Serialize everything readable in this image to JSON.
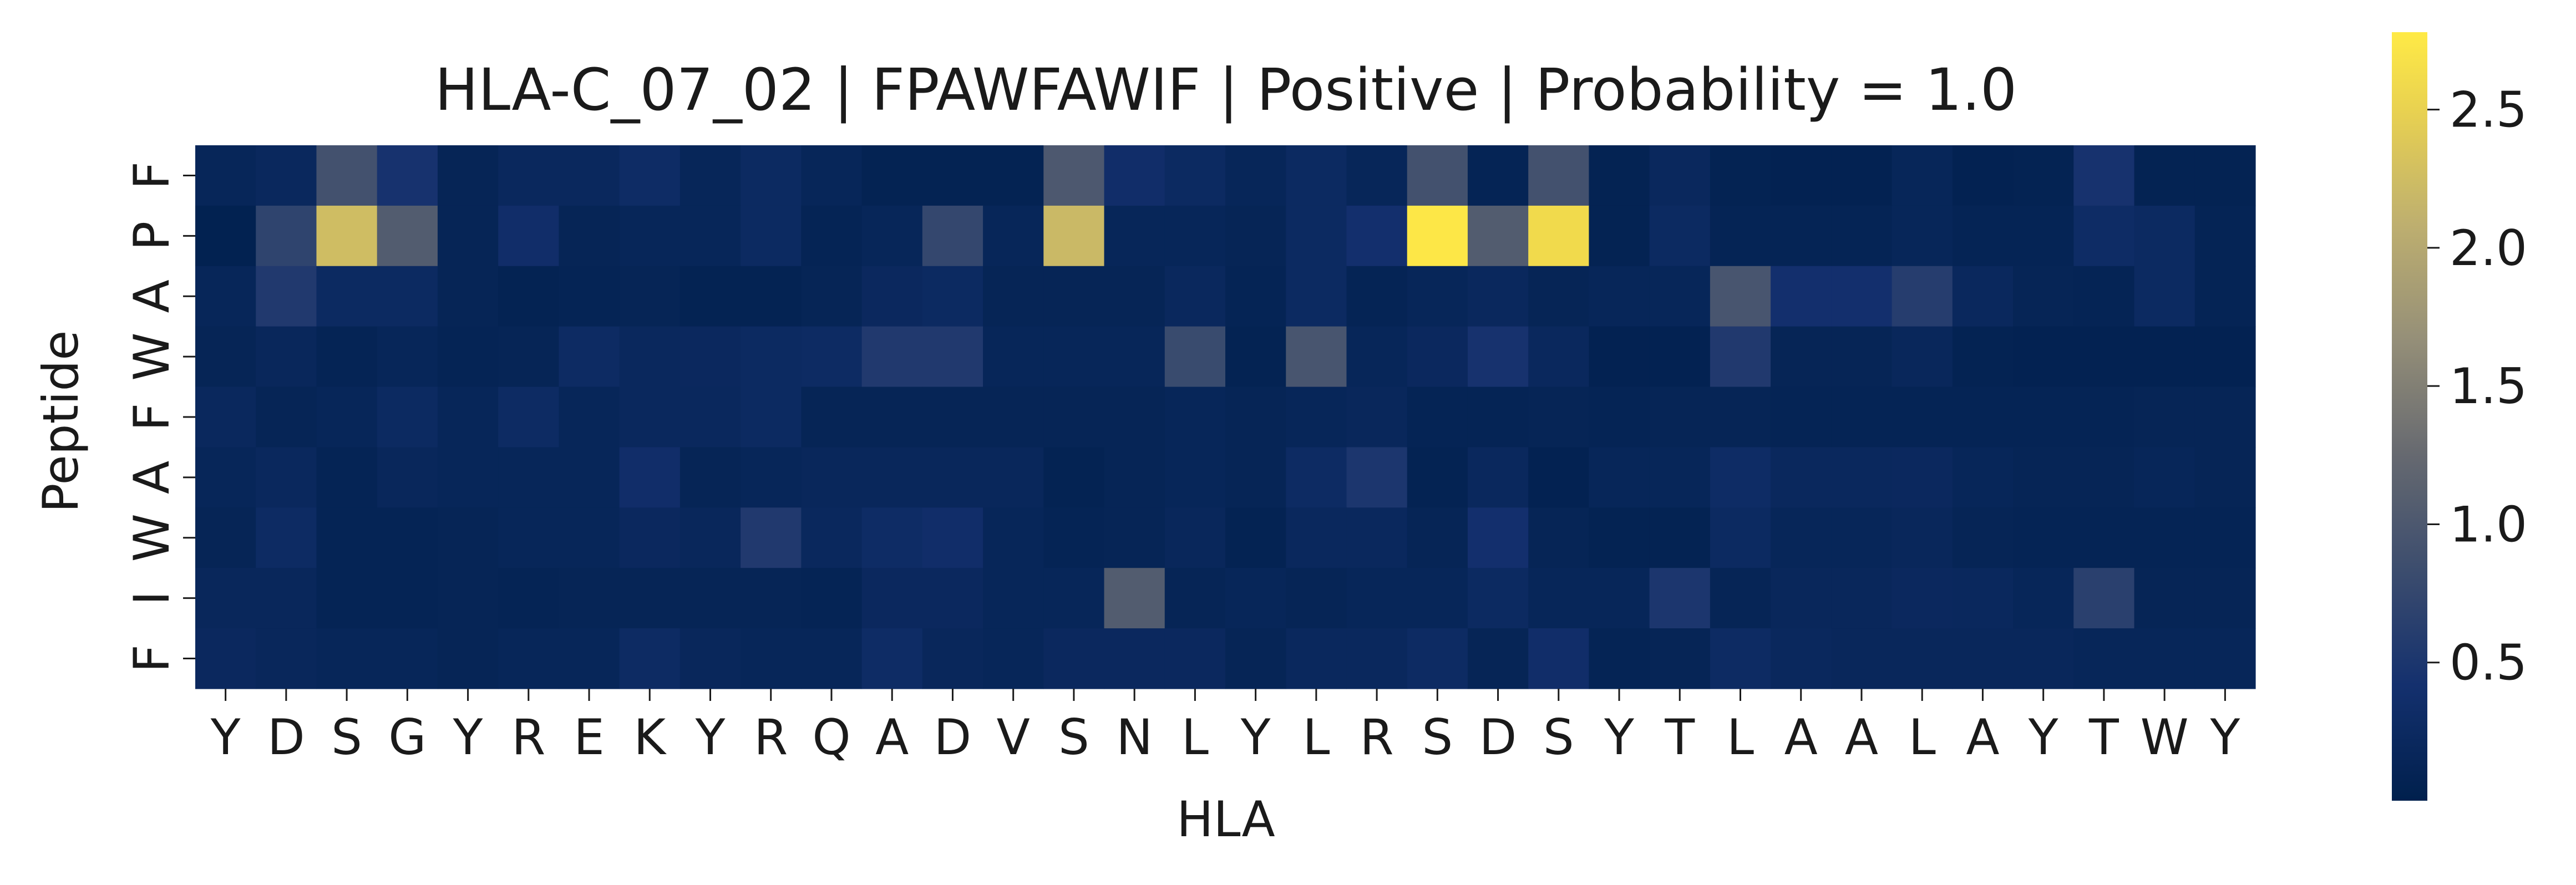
{
  "chart_data": {
    "type": "heatmap",
    "title": "HLA-C_07_02 | FPAWFAWIF | Positive | Probability = 1.0",
    "xlabel": "HLA",
    "ylabel": "Peptide",
    "x_categories": [
      "Y",
      "D",
      "S",
      "G",
      "Y",
      "R",
      "E",
      "K",
      "Y",
      "R",
      "Q",
      "A",
      "D",
      "V",
      "S",
      "N",
      "L",
      "Y",
      "L",
      "R",
      "S",
      "D",
      "S",
      "Y",
      "T",
      "L",
      "A",
      "A",
      "L",
      "A",
      "Y",
      "T",
      "W",
      "Y"
    ],
    "y_categories": [
      "F",
      "P",
      "A",
      "W",
      "F",
      "A",
      "W",
      "I",
      "F"
    ],
    "values": [
      [
        0.15,
        0.2,
        0.9,
        0.45,
        0.12,
        0.2,
        0.2,
        0.3,
        0.15,
        0.25,
        0.15,
        0.08,
        0.08,
        0.08,
        1.0,
        0.35,
        0.25,
        0.15,
        0.25,
        0.15,
        0.9,
        0.1,
        0.9,
        0.08,
        0.2,
        0.08,
        0.06,
        0.06,
        0.15,
        0.06,
        0.08,
        0.45,
        0.08,
        0.08
      ],
      [
        0.05,
        0.7,
        2.25,
        1.05,
        0.12,
        0.35,
        0.12,
        0.15,
        0.15,
        0.25,
        0.1,
        0.15,
        0.75,
        0.15,
        2.2,
        0.15,
        0.15,
        0.12,
        0.25,
        0.4,
        2.75,
        1.05,
        2.6,
        0.08,
        0.25,
        0.1,
        0.1,
        0.1,
        0.15,
        0.1,
        0.1,
        0.3,
        0.25,
        0.1
      ],
      [
        0.15,
        0.55,
        0.25,
        0.25,
        0.12,
        0.08,
        0.1,
        0.12,
        0.08,
        0.08,
        0.12,
        0.22,
        0.25,
        0.12,
        0.12,
        0.12,
        0.2,
        0.1,
        0.25,
        0.1,
        0.15,
        0.2,
        0.12,
        0.15,
        0.15,
        0.95,
        0.4,
        0.4,
        0.6,
        0.2,
        0.12,
        0.1,
        0.25,
        0.1
      ],
      [
        0.12,
        0.18,
        0.1,
        0.15,
        0.1,
        0.12,
        0.28,
        0.2,
        0.22,
        0.25,
        0.28,
        0.55,
        0.55,
        0.15,
        0.15,
        0.15,
        0.8,
        0.08,
        0.95,
        0.15,
        0.22,
        0.45,
        0.2,
        0.06,
        0.06,
        0.55,
        0.12,
        0.12,
        0.18,
        0.08,
        0.06,
        0.06,
        0.06,
        0.06
      ],
      [
        0.2,
        0.12,
        0.15,
        0.25,
        0.15,
        0.28,
        0.15,
        0.2,
        0.2,
        0.25,
        0.12,
        0.12,
        0.12,
        0.12,
        0.12,
        0.12,
        0.15,
        0.12,
        0.15,
        0.18,
        0.1,
        0.1,
        0.12,
        0.1,
        0.12,
        0.12,
        0.1,
        0.1,
        0.1,
        0.1,
        0.1,
        0.1,
        0.12,
        0.12
      ],
      [
        0.15,
        0.2,
        0.1,
        0.18,
        0.15,
        0.15,
        0.15,
        0.35,
        0.12,
        0.15,
        0.18,
        0.18,
        0.18,
        0.18,
        0.08,
        0.12,
        0.15,
        0.12,
        0.28,
        0.5,
        0.08,
        0.2,
        0.06,
        0.15,
        0.15,
        0.3,
        0.2,
        0.2,
        0.22,
        0.15,
        0.12,
        0.12,
        0.15,
        0.12
      ],
      [
        0.12,
        0.28,
        0.1,
        0.1,
        0.12,
        0.15,
        0.15,
        0.22,
        0.18,
        0.55,
        0.2,
        0.3,
        0.35,
        0.15,
        0.1,
        0.12,
        0.18,
        0.08,
        0.2,
        0.2,
        0.12,
        0.4,
        0.12,
        0.08,
        0.08,
        0.25,
        0.15,
        0.15,
        0.18,
        0.12,
        0.1,
        0.1,
        0.1,
        0.1
      ],
      [
        0.18,
        0.18,
        0.1,
        0.1,
        0.12,
        0.1,
        0.12,
        0.12,
        0.12,
        0.12,
        0.1,
        0.22,
        0.22,
        0.15,
        0.15,
        1.05,
        0.12,
        0.15,
        0.12,
        0.15,
        0.15,
        0.25,
        0.15,
        0.15,
        0.5,
        0.12,
        0.18,
        0.18,
        0.22,
        0.2,
        0.15,
        0.65,
        0.12,
        0.12
      ],
      [
        0.22,
        0.18,
        0.15,
        0.15,
        0.12,
        0.15,
        0.15,
        0.28,
        0.18,
        0.15,
        0.15,
        0.3,
        0.18,
        0.15,
        0.22,
        0.22,
        0.22,
        0.12,
        0.2,
        0.2,
        0.28,
        0.12,
        0.35,
        0.1,
        0.12,
        0.28,
        0.2,
        0.18,
        0.18,
        0.18,
        0.18,
        0.15,
        0.15,
        0.15
      ]
    ],
    "colorbar": {
      "colormap": "cividis",
      "vmin": 0.0,
      "vmax": 2.78,
      "ticks": [
        0.5,
        1.0,
        1.5,
        2.0,
        2.5
      ],
      "tick_labels": [
        "0.5",
        "1.0",
        "1.5",
        "2.0",
        "2.5"
      ]
    },
    "grid": false,
    "legend": "colorbar-right"
  }
}
